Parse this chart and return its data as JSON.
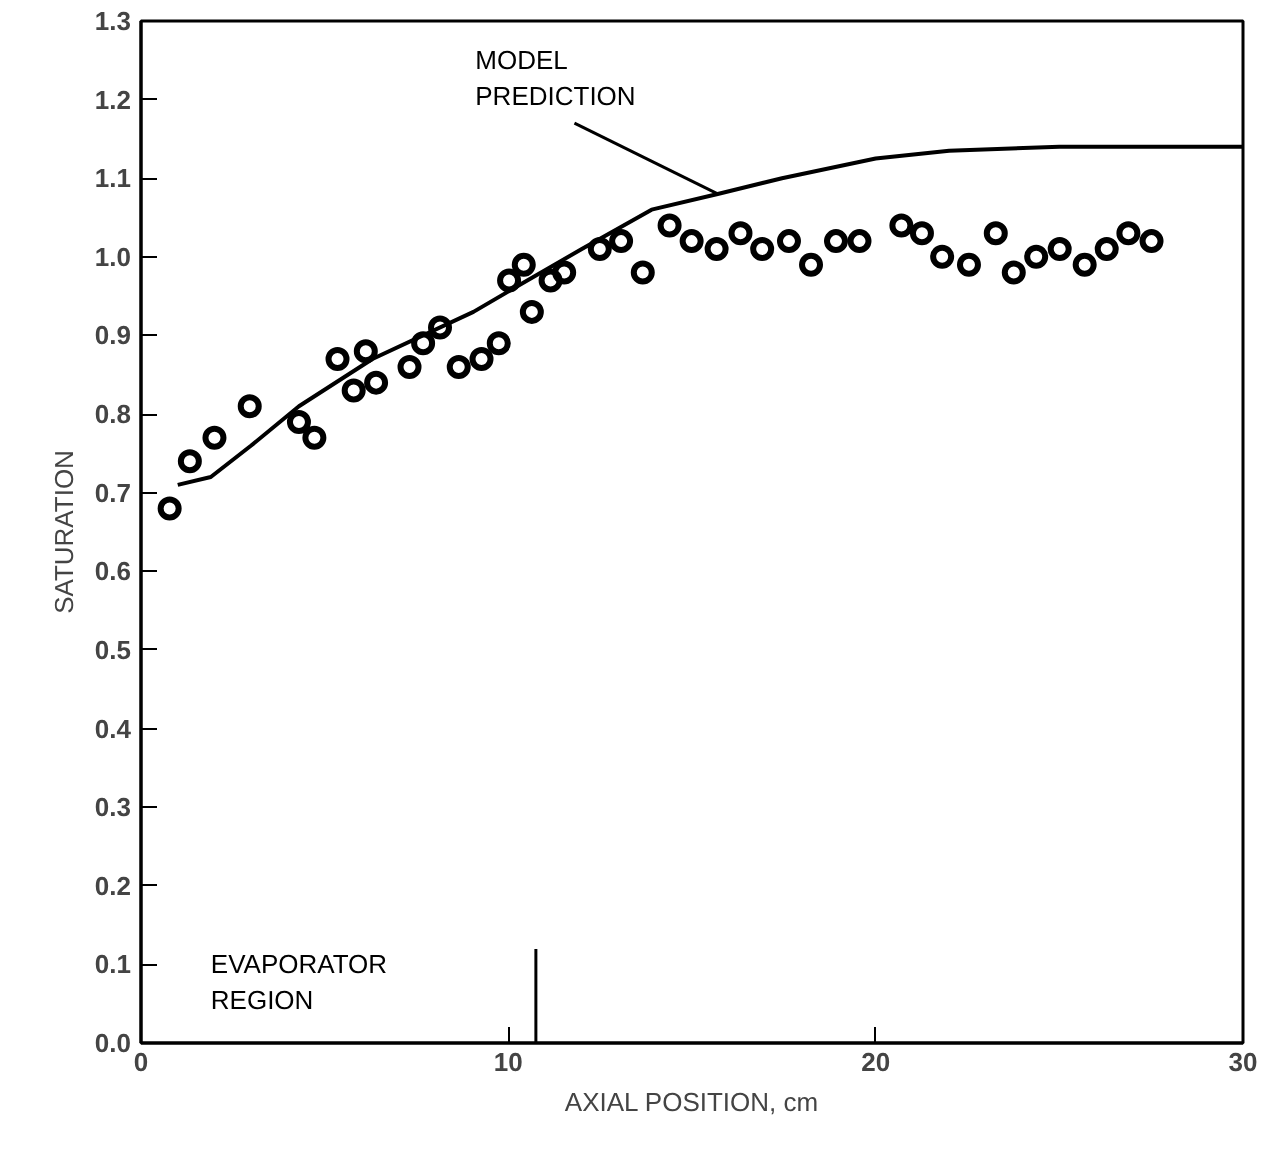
{
  "chart_data": {
    "type": "scatter",
    "xlabel": "AXIAL POSITION, cm",
    "ylabel": "SATURATION",
    "xlim": [
      0,
      30
    ],
    "ylim": [
      0,
      1.3
    ],
    "xticks": [
      0,
      10,
      20,
      30
    ],
    "yticks": [
      {
        "value": 0,
        "label": "0.0"
      },
      0.1,
      0.2,
      0.3,
      0.4,
      0.5,
      0.6,
      0.7,
      0.8,
      0.9,
      {
        "value": 1,
        "label": "1.0"
      },
      1.1,
      1.2,
      1.3
    ],
    "grid": false,
    "series": [
      {
        "marker": "circle",
        "color": "#000000",
        "x": [
          0.78,
          1.33,
          2.0,
          2.96,
          4.3,
          4.72,
          5.35,
          5.79,
          6.12,
          6.4,
          7.31,
          7.68,
          8.14,
          8.65,
          9.27,
          9.74,
          10.02,
          10.42,
          10.64,
          11.15,
          11.52,
          12.49,
          13.07,
          13.66,
          14.39,
          14.99,
          15.67,
          16.32,
          16.91,
          17.64,
          18.24,
          18.92,
          19.56,
          20.7,
          21.26,
          21.81,
          22.54,
          23.27,
          23.76,
          24.37,
          25.01,
          25.69,
          26.29,
          26.88,
          27.51
        ],
        "values": [
          0.68,
          0.74,
          0.77,
          0.81,
          0.79,
          0.77,
          0.87,
          0.83,
          0.88,
          0.84,
          0.86,
          0.89,
          0.91,
          0.86,
          0.87,
          0.89,
          0.97,
          0.99,
          0.93,
          0.97,
          0.98,
          1.01,
          1.02,
          0.98,
          1.04,
          1.02,
          1.01,
          1.03,
          1.01,
          1.02,
          0.99,
          1.02,
          1.02,
          1.04,
          1.03,
          1.0,
          0.99,
          1.03,
          0.98,
          1.0,
          1.01,
          0.99,
          1.01,
          1.03,
          1.02
        ]
      },
      {
        "type": "line",
        "line_style": "solid",
        "color": "#000000",
        "x": [
          1.0,
          1.9,
          3.0,
          4.3,
          6.3,
          9.05,
          10.15,
          12.0,
          13.9,
          15.7,
          17.45,
          20,
          22,
          25,
          30
        ],
        "values": [
          0.71,
          0.72,
          0.76,
          0.81,
          0.87,
          0.93,
          0.96,
          1.01,
          1.06,
          1.08,
          1.1,
          1.125,
          1.135,
          1.14,
          1.14
        ]
      }
    ],
    "ref_lines": [
      {
        "axis": "x",
        "value": 10.75,
        "label": "EVAPORATOR\nREGION"
      }
    ],
    "annotations": [
      {
        "text": "MODEL\nPREDICTION",
        "x": 15.7,
        "y": 1.08
      }
    ]
  }
}
